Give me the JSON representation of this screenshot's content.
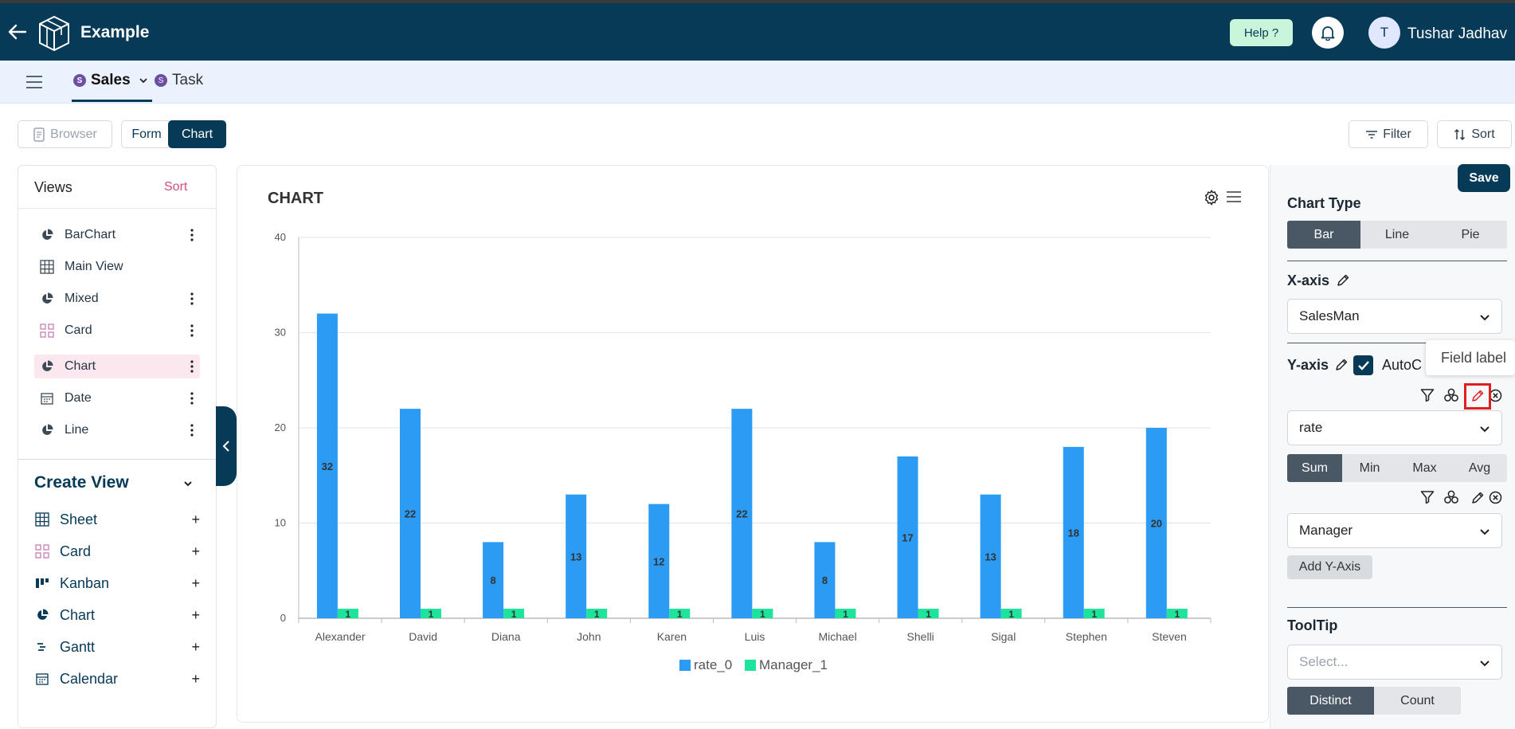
{
  "header": {
    "app_title": "Example",
    "help_label": "Help ?",
    "avatar_initial": "T",
    "user_name": "Tushar Jadhav"
  },
  "tabs": [
    {
      "badge": "S",
      "label": "Sales",
      "active": true
    },
    {
      "badge": "S",
      "label": "Task",
      "active": false
    }
  ],
  "toolbar": {
    "browser_label": "Browser",
    "form_label": "Form",
    "chart_label": "Chart",
    "filter_label": "Filter",
    "sort_label": "Sort"
  },
  "views": {
    "title": "Views",
    "sort_label": "Sort",
    "items": [
      {
        "label": "BarChart",
        "icon": "pie-chart-icon",
        "menu": true,
        "active": false
      },
      {
        "label": "Main View",
        "icon": "grid-icon",
        "menu": false,
        "active": false
      },
      {
        "label": "Mixed",
        "icon": "pie-chart-icon",
        "menu": true,
        "active": false
      },
      {
        "label": "Card",
        "icon": "card-icon",
        "menu": true,
        "active": false
      },
      {
        "label": "Chart",
        "icon": "pie-chart-icon",
        "menu": true,
        "active": true
      },
      {
        "label": "Date",
        "icon": "calendar-icon",
        "menu": true,
        "active": false
      },
      {
        "label": "Line",
        "icon": "pie-chart-icon",
        "menu": true,
        "active": false
      }
    ]
  },
  "create_view": {
    "title": "Create View",
    "items": [
      {
        "label": "Sheet",
        "icon": "grid-icon"
      },
      {
        "label": "Card",
        "icon": "card-icon"
      },
      {
        "label": "Kanban",
        "icon": "kanban-icon"
      },
      {
        "label": "Chart",
        "icon": "pie-chart-icon"
      },
      {
        "label": "Gantt",
        "icon": "gantt-icon"
      },
      {
        "label": "Calendar",
        "icon": "calendar-icon"
      }
    ]
  },
  "chart_panel": {
    "title": "CHART"
  },
  "chart_data": {
    "type": "bar",
    "title": "CHART",
    "categories": [
      "Alexander",
      "David",
      "Diana",
      "John",
      "Karen",
      "Luis",
      "Michael",
      "Shelli",
      "Sigal",
      "Stephen",
      "Steven"
    ],
    "series": [
      {
        "name": "rate_0",
        "color": "#2b9bf4",
        "values": [
          32,
          22,
          8,
          13,
          12,
          22,
          8,
          17,
          13,
          18,
          20
        ]
      },
      {
        "name": "Manager_1",
        "color": "#1ee39b",
        "values": [
          1,
          1,
          1,
          1,
          1,
          1,
          1,
          1,
          1,
          1,
          1
        ]
      }
    ],
    "ylim": [
      0,
      40
    ],
    "yticks": [
      0,
      10,
      20,
      30,
      40
    ],
    "grid": true,
    "legend": "bottom",
    "data_labels": true
  },
  "settings": {
    "save_label": "Save",
    "chart_type_label": "Chart Type",
    "chart_types": [
      {
        "label": "Bar",
        "on": true
      },
      {
        "label": "Line",
        "on": false
      },
      {
        "label": "Pie",
        "on": false
      }
    ],
    "xaxis_label": "X-axis",
    "xaxis_value": "SalesMan",
    "yaxis_label": "Y-axis",
    "auto_label": "AutoC",
    "field_label_tooltip": "Field label",
    "y1_value": "rate",
    "aggregations": [
      {
        "label": "Sum",
        "on": true
      },
      {
        "label": "Min",
        "on": false
      },
      {
        "label": "Max",
        "on": false
      },
      {
        "label": "Avg",
        "on": false
      }
    ],
    "y2_value": "Manager",
    "add_y_label": "Add Y-Axis",
    "tooltip_label": "ToolTip",
    "tooltip_placeholder": "Select...",
    "tooltip_modes": [
      {
        "label": "Distinct",
        "on": true
      },
      {
        "label": "Count",
        "on": false
      }
    ]
  }
}
